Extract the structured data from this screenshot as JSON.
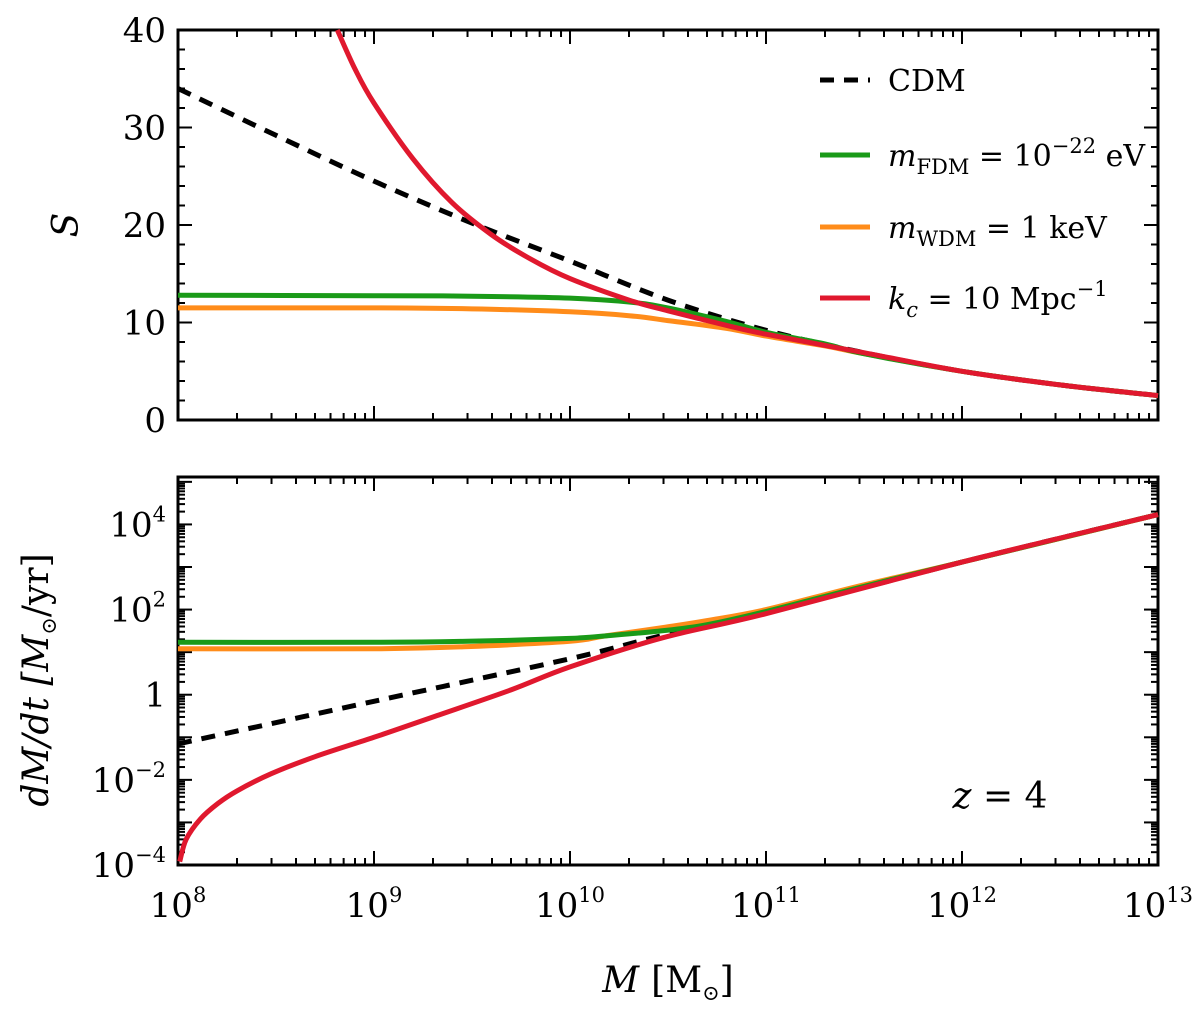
{
  "chart_data": [
    {
      "type": "line",
      "panel": "top",
      "ylabel": "S",
      "x_scale": "log",
      "y_scale": "linear",
      "xlim": [
        100000000.0,
        10000000000000.0
      ],
      "ylim": [
        0,
        40
      ],
      "y_ticks": [
        {
          "value": 0,
          "label": "0"
        },
        {
          "value": 10,
          "label": "10"
        },
        {
          "value": 20,
          "label": "20"
        },
        {
          "value": 30,
          "label": "30"
        },
        {
          "value": 40,
          "label": "40"
        }
      ],
      "legend_position": "top-right",
      "legend": [
        {
          "series": "cdm",
          "label": "CDM"
        },
        {
          "series": "fdm",
          "label_main": "m",
          "label_sub": "FDM",
          "label_rest": " = 10",
          "label_sup": "−22",
          "label_tail": " eV"
        },
        {
          "series": "wdm",
          "label_main": "m",
          "label_sub": "WDM",
          "label_rest": " = 1 keV"
        },
        {
          "series": "kc",
          "label_main": "k",
          "label_sub": "c",
          "label_rest": " = 10 Mpc",
          "label_sup": "−1"
        }
      ],
      "series": [
        {
          "name": "cdm",
          "color": "#000000",
          "dashed": true,
          "x": [
            100000000.0,
            316000000.0,
            1000000000.0,
            3160000000.0,
            10000000000.0,
            31600000000.0,
            100000000000.0,
            316000000000.0,
            1000000000000.0,
            3160000000000.0,
            10000000000000.0
          ],
          "y": [
            34,
            29.2,
            24.5,
            20.2,
            16.3,
            12.3,
            9.2,
            6.9,
            5,
            3.6,
            2.5
          ]
        },
        {
          "name": "fdm",
          "color": "#1a9a18",
          "dashed": false,
          "x": [
            100000000.0,
            1000000000.0,
            3160000000.0,
            10000000000.0,
            20000000000.0,
            31600000000.0,
            63000000000.0,
            100000000000.0,
            200000000000.0,
            316000000000.0,
            1000000000000.0,
            3160000000000.0,
            10000000000000.0
          ],
          "y": [
            12.8,
            12.75,
            12.7,
            12.5,
            12.1,
            11.5,
            10.1,
            9.0,
            7.8,
            6.8,
            5.0,
            3.6,
            2.5
          ]
        },
        {
          "name": "wdm",
          "color": "#ff8c1a",
          "dashed": false,
          "x": [
            100000000.0,
            1000000000.0,
            3160000000.0,
            10000000000.0,
            20000000000.0,
            31600000000.0,
            63000000000.0,
            100000000000.0,
            200000000000.0,
            316000000000.0,
            1000000000000.0,
            3160000000000.0,
            10000000000000.0
          ],
          "y": [
            11.5,
            11.5,
            11.4,
            11.1,
            10.7,
            10.2,
            9.4,
            8.6,
            7.6,
            6.8,
            5.0,
            3.6,
            2.5
          ]
        },
        {
          "name": "kc",
          "color": "#e0182e",
          "dashed": false,
          "x": [
            650000000.0,
            800000000.0,
            1000000000.0,
            1580000000.0,
            2500000000.0,
            3980000000.0,
            6300000000.0,
            10000000000.0,
            20000000000.0,
            31600000000.0,
            63000000000.0,
            100000000000.0,
            316000000000.0,
            1000000000000.0,
            3160000000000.0,
            10000000000000.0
          ],
          "y": [
            40,
            36,
            32.5,
            26.8,
            22.3,
            19,
            16.5,
            14.5,
            12.3,
            11.2,
            9.7,
            8.8,
            6.9,
            5.0,
            3.6,
            2.5
          ]
        }
      ]
    },
    {
      "type": "line",
      "panel": "bottom",
      "title": "",
      "xlabel": "M [M⊙]",
      "xlabel_main": "M",
      "xlabel_unit": "[M",
      "xlabel_sun": "⊙",
      "xlabel_close": "]",
      "ylabel": "dM/dt [M⊙/yr]",
      "ylabel_main": "dM/dt [M",
      "ylabel_sun": "⊙",
      "ylabel_rest": "/yr]",
      "x_scale": "log",
      "y_scale": "log",
      "xlim": [
        100000000.0,
        10000000000000.0
      ],
      "ylim": [
        0.0001,
        130000.0
      ],
      "x_ticks": [
        {
          "value": 100000000.0,
          "base": "10",
          "exp": "8"
        },
        {
          "value": 1000000000.0,
          "base": "10",
          "exp": "9"
        },
        {
          "value": 10000000000.0,
          "base": "10",
          "exp": "10"
        },
        {
          "value": 100000000000.0,
          "base": "10",
          "exp": "11"
        },
        {
          "value": 1000000000000.0,
          "base": "10",
          "exp": "12"
        },
        {
          "value": 10000000000000.0,
          "base": "10",
          "exp": "13"
        }
      ],
      "y_ticks": [
        {
          "value": 0.0001,
          "base": "10",
          "exp": "−4"
        },
        {
          "value": 0.01,
          "base": "10",
          "exp": "−2"
        },
        {
          "value": 1,
          "base": "1",
          "exp": ""
        },
        {
          "value": 100.0,
          "base": "10",
          "exp": "2"
        },
        {
          "value": 10000.0,
          "base": "10",
          "exp": "4"
        }
      ],
      "annotation": "z = 4",
      "annotation_main": "z",
      "annotation_rest": " = 4",
      "series": [
        {
          "name": "cdm",
          "color": "#000000",
          "dashed": true,
          "x": [
            100000000.0,
            1000000000.0,
            10000000000.0,
            30000000000.0,
            100000000000.0,
            1000000000000.0,
            10000000000000.0
          ],
          "y": [
            0.07,
            0.7,
            7,
            25,
            85,
            1300,
            17000
          ]
        },
        {
          "name": "fdm",
          "color": "#1a9a18",
          "dashed": false,
          "x": [
            100000000.0,
            1000000000.0,
            3000000000.0,
            10000000000.0,
            15000000000.0,
            30000000000.0,
            50000000000.0,
            100000000000.0,
            300000000000.0,
            1000000000000.0,
            10000000000000.0
          ],
          "y": [
            17,
            17,
            18,
            21,
            24,
            32,
            44,
            90,
            330,
            1300,
            17000
          ]
        },
        {
          "name": "wdm",
          "color": "#ff8c1a",
          "dashed": false,
          "x": [
            100000000.0,
            1000000000.0,
            3000000000.0,
            10000000000.0,
            15000000000.0,
            30000000000.0,
            50000000000.0,
            100000000000.0,
            300000000000.0,
            1000000000000.0,
            10000000000000.0
          ],
          "y": [
            12,
            12,
            13.5,
            18,
            24,
            38,
            55,
            100,
            360,
            1300,
            17000
          ]
        },
        {
          "name": "kc",
          "color": "#e0182e",
          "dashed": false,
          "x": [
            102000000.0,
            110000000.0,
            130000000.0,
            160000000.0,
            200000000.0,
            300000000.0,
            500000000.0,
            1000000000.0,
            2000000000.0,
            5000000000.0,
            10000000000.0,
            30000000000.0,
            100000000000.0,
            1000000000000.0,
            10000000000000.0
          ],
          "y": [
            0.00012,
            0.0004,
            0.0012,
            0.0028,
            0.0055,
            0.014,
            0.035,
            0.1,
            0.3,
            1.3,
            4.5,
            22,
            80,
            1300,
            17000
          ]
        }
      ]
    }
  ]
}
